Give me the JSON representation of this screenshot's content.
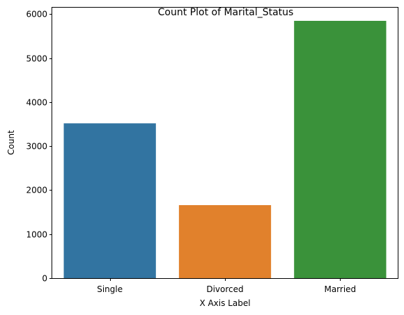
{
  "chart_data": {
    "type": "bar",
    "title": "Count Plot of Marital_Status",
    "xlabel": "X Axis Label",
    "ylabel": "Count",
    "categories": [
      "Single",
      "Divorced",
      "Married"
    ],
    "values": [
      3520,
      1660,
      5850
    ],
    "colors": [
      "#3274a1",
      "#e1812c",
      "#3a923a"
    ],
    "ylim": [
      0,
      6150
    ],
    "yticks": [
      0,
      1000,
      2000,
      3000,
      4000,
      5000,
      6000
    ],
    "grid": false,
    "legend": "none"
  }
}
